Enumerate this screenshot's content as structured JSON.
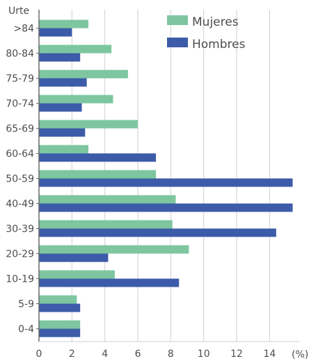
{
  "chart_data": {
    "type": "bar",
    "orientation": "horizontal",
    "y_axis_title": "Urte",
    "x_unit_label": "(%)",
    "categories": [
      ">84",
      "80-84",
      "75-79",
      "70-74",
      "65-69",
      "60-64",
      "50-59",
      "40-49",
      "30-39",
      "20-29",
      "10-19",
      "5-9",
      "0-4"
    ],
    "series": [
      {
        "name": "Mujeres",
        "color": "#7dc6a0",
        "values": [
          3.0,
          4.4,
          5.4,
          4.5,
          6.0,
          3.0,
          7.1,
          8.3,
          8.1,
          9.1,
          4.6,
          2.3,
          2.5
        ]
      },
      {
        "name": "Hombres",
        "color": "#3c5ba8",
        "values": [
          2.0,
          2.5,
          2.9,
          2.6,
          2.8,
          7.1,
          15.4,
          15.4,
          14.4,
          4.2,
          8.5,
          2.5,
          2.5
        ]
      }
    ],
    "x_ticks": [
      0,
      2,
      4,
      6,
      8,
      10,
      12,
      14
    ],
    "xlim": [
      0,
      15.8
    ],
    "grid": true,
    "legend_position": "top-right"
  }
}
